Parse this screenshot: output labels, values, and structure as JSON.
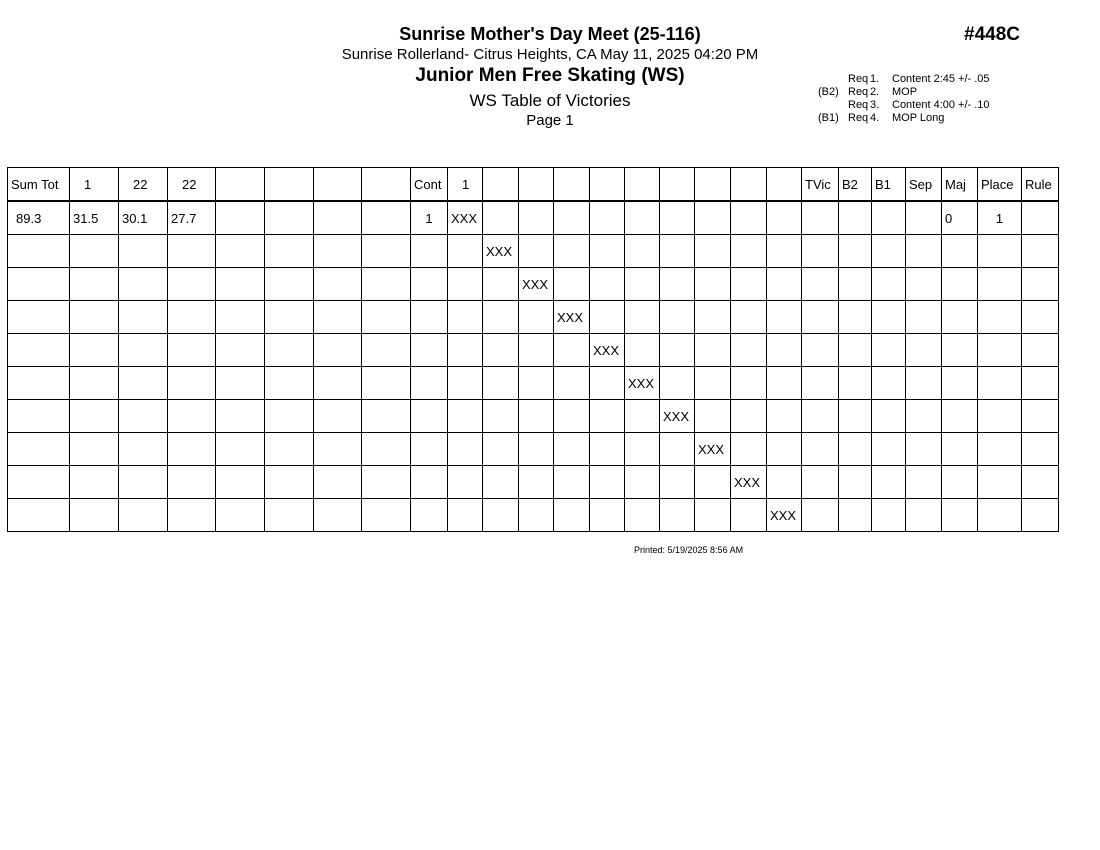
{
  "header": {
    "meet_title": "Sunrise Mother's Day Meet (25-116)",
    "venue_date": "Sunrise Rollerland- Citrus Heights, CA  May 11, 2025  04:20 PM",
    "event_title": "Junior Men Free Skating (WS)",
    "report_title": "WS Table of Victories",
    "page": "Page 1",
    "event_number": "#448C"
  },
  "requirements": [
    {
      "tag": "",
      "req": "Req",
      "num": "1.",
      "text": "Content 2:45 +/- .05"
    },
    {
      "tag": "(B2)",
      "req": "Req",
      "num": "2.",
      "text": "MOP"
    },
    {
      "tag": "",
      "req": "Req",
      "num": "3.",
      "text": "Content 4:00 +/- .10"
    },
    {
      "tag": "(B1)",
      "req": "Req",
      "num": "4.",
      "text": "MOP Long"
    }
  ],
  "table": {
    "columns": [
      "Sum Tot",
      "1",
      "22",
      "22",
      "",
      "",
      "",
      "",
      "Cont",
      "1",
      "",
      "",
      "",
      "",
      "",
      "",
      "",
      "",
      "",
      "",
      "TVic",
      "B2",
      "B1",
      "Sep",
      "Maj",
      "Place",
      "Rule"
    ],
    "rows": [
      [
        "89.3",
        "31.5",
        "30.1",
        "27.7",
        "",
        "",
        "",
        "",
        "1",
        "XXX",
        "",
        "",
        "",
        "",
        "",
        "",
        "",
        "",
        "",
        "",
        "",
        "",
        "",
        "",
        "0",
        "1",
        ""
      ],
      [
        "",
        "",
        "",
        "",
        "",
        "",
        "",
        "",
        "",
        "",
        "XXX",
        "",
        "",
        "",
        "",
        "",
        "",
        "",
        "",
        "",
        "",
        "",
        "",
        "",
        "",
        "",
        ""
      ],
      [
        "",
        "",
        "",
        "",
        "",
        "",
        "",
        "",
        "",
        "",
        "",
        "XXX",
        "",
        "",
        "",
        "",
        "",
        "",
        "",
        "",
        "",
        "",
        "",
        "",
        "",
        "",
        ""
      ],
      [
        "",
        "",
        "",
        "",
        "",
        "",
        "",
        "",
        "",
        "",
        "",
        "",
        "XXX",
        "",
        "",
        "",
        "",
        "",
        "",
        "",
        "",
        "",
        "",
        "",
        "",
        "",
        ""
      ],
      [
        "",
        "",
        "",
        "",
        "",
        "",
        "",
        "",
        "",
        "",
        "",
        "",
        "",
        "XXX",
        "",
        "",
        "",
        "",
        "",
        "",
        "",
        "",
        "",
        "",
        "",
        "",
        ""
      ],
      [
        "",
        "",
        "",
        "",
        "",
        "",
        "",
        "",
        "",
        "",
        "",
        "",
        "",
        "",
        "XXX",
        "",
        "",
        "",
        "",
        "",
        "",
        "",
        "",
        "",
        "",
        "",
        ""
      ],
      [
        "",
        "",
        "",
        "",
        "",
        "",
        "",
        "",
        "",
        "",
        "",
        "",
        "",
        "",
        "",
        "XXX",
        "",
        "",
        "",
        "",
        "",
        "",
        "",
        "",
        "",
        "",
        ""
      ],
      [
        "",
        "",
        "",
        "",
        "",
        "",
        "",
        "",
        "",
        "",
        "",
        "",
        "",
        "",
        "",
        "",
        "XXX",
        "",
        "",
        "",
        "",
        "",
        "",
        "",
        "",
        "",
        ""
      ],
      [
        "",
        "",
        "",
        "",
        "",
        "",
        "",
        "",
        "",
        "",
        "",
        "",
        "",
        "",
        "",
        "",
        "",
        "XXX",
        "",
        "",
        "",
        "",
        "",
        "",
        "",
        "",
        ""
      ],
      [
        "",
        "",
        "",
        "",
        "",
        "",
        "",
        "",
        "",
        "",
        "",
        "",
        "",
        "",
        "",
        "",
        "",
        "",
        "XXX",
        "",
        "",
        "",
        "",
        "",
        "",
        "",
        ""
      ]
    ]
  },
  "footer": {
    "printed": "Printed:  5/19/2025  8:56 AM"
  }
}
